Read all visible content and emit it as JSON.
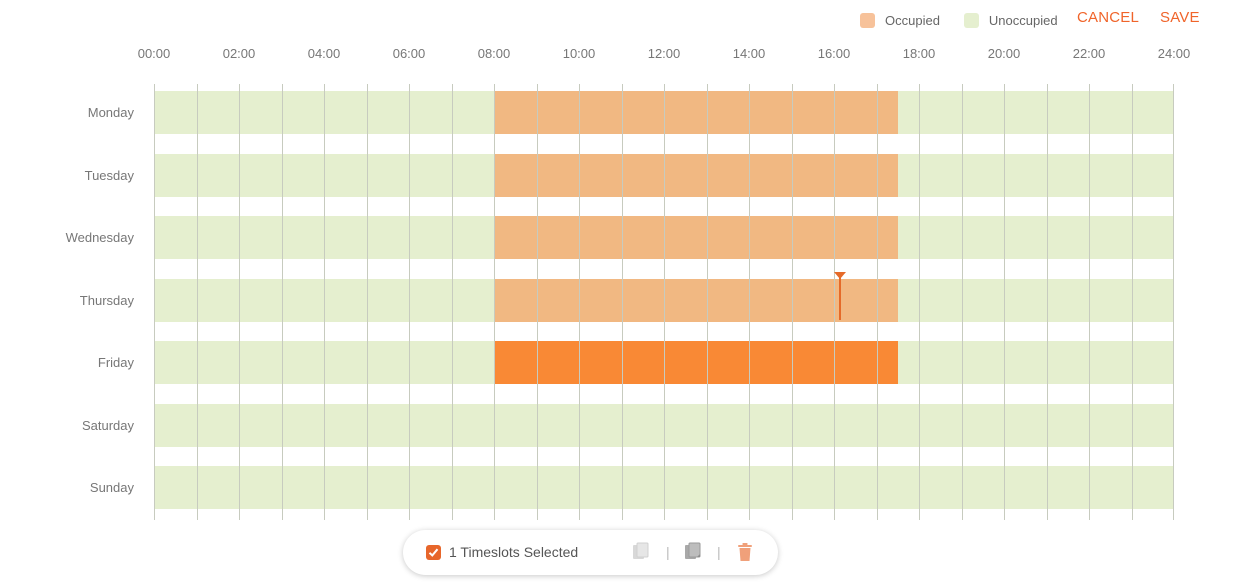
{
  "legend": {
    "occupied": "Occupied",
    "unoccupied": "Unoccupied"
  },
  "colors": {
    "occupied": "#f1b882",
    "selected": "#f98935",
    "unoccupied": "#e5efcf",
    "accent": "#f0642a"
  },
  "actions": {
    "cancel": "CANCEL",
    "save": "SAVE"
  },
  "hours": [
    "00:00",
    "02:00",
    "04:00",
    "06:00",
    "08:00",
    "10:00",
    "12:00",
    "14:00",
    "16:00",
    "18:00",
    "20:00",
    "22:00",
    "24:00"
  ],
  "schedule": [
    {
      "day": "Monday",
      "slots": [
        {
          "start": 8,
          "end": 17.5,
          "selected": false
        }
      ]
    },
    {
      "day": "Tuesday",
      "slots": [
        {
          "start": 8,
          "end": 17.5,
          "selected": false
        }
      ]
    },
    {
      "day": "Wednesday",
      "slots": [
        {
          "start": 8,
          "end": 17.5,
          "selected": false
        }
      ]
    },
    {
      "day": "Thursday",
      "slots": [
        {
          "start": 8,
          "end": 17.5,
          "selected": false
        }
      ]
    },
    {
      "day": "Friday",
      "slots": [
        {
          "start": 8,
          "end": 17.5,
          "selected": true
        }
      ]
    },
    {
      "day": "Saturday",
      "slots": []
    },
    {
      "day": "Sunday",
      "slots": []
    }
  ],
  "toolbar": {
    "selected_text": "1 Timeslots Selected",
    "checked": true,
    "icons": [
      "copy-icon",
      "paste-icon",
      "trash-icon"
    ]
  }
}
